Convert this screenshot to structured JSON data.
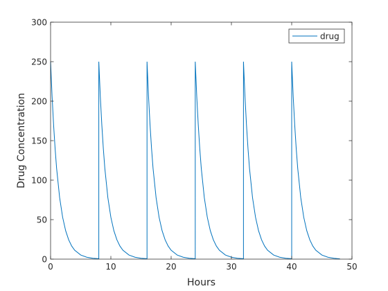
{
  "chart_data": {
    "type": "line",
    "title": "",
    "xlabel": "Hours",
    "ylabel": "Drug Concentration",
    "xlim": [
      0,
      50
    ],
    "ylim": [
      0,
      300
    ],
    "xticks": [
      0,
      10,
      20,
      30,
      40,
      50
    ],
    "yticks": [
      0,
      50,
      100,
      150,
      200,
      250,
      300
    ],
    "grid": false,
    "legend_position": "top-right",
    "series": [
      {
        "name": "drug",
        "color": "#0072bd",
        "dose_times": [
          0,
          8,
          16,
          24,
          32,
          40
        ],
        "x": [
          0,
          0.25,
          0.5,
          0.75,
          1,
          1.5,
          2,
          2.5,
          3,
          3.5,
          4,
          5,
          6,
          7,
          8,
          8,
          8.25,
          8.5,
          8.75,
          9,
          9.5,
          10,
          10.5,
          11,
          11.5,
          12,
          13,
          14,
          15,
          16,
          16,
          16.25,
          16.5,
          16.75,
          17,
          17.5,
          18,
          18.5,
          19,
          19.5,
          20,
          21,
          22,
          23,
          24,
          24,
          24.25,
          24.5,
          24.75,
          25,
          25.5,
          26,
          26.5,
          27,
          27.5,
          28,
          29,
          30,
          31,
          32,
          32,
          32.25,
          32.5,
          32.75,
          33,
          33.5,
          34,
          34.5,
          35,
          35.5,
          36,
          37,
          38,
          39,
          40,
          40,
          40.25,
          40.5,
          40.75,
          41,
          41.5,
          42,
          42.5,
          43,
          43.5,
          44,
          45,
          46,
          47,
          48
        ],
        "y": [
          250,
          206,
          170,
          140,
          115,
          78,
          53,
          36,
          24.5,
          16.6,
          11.3,
          5.2,
          2.4,
          1.1,
          0.5,
          250,
          206,
          170,
          140,
          115,
          78,
          53,
          36,
          24.5,
          16.6,
          11.3,
          5.2,
          2.4,
          1.1,
          0.5,
          250,
          206,
          170,
          140,
          115,
          78,
          53,
          36,
          24.5,
          16.6,
          11.3,
          5.2,
          2.4,
          1.1,
          0.5,
          250,
          206,
          170,
          140,
          115,
          78,
          53,
          36,
          24.5,
          16.6,
          11.3,
          5.2,
          2.4,
          1.1,
          0.5,
          250,
          206,
          170,
          140,
          115,
          78,
          53,
          36,
          24.5,
          16.6,
          11.3,
          5.2,
          2.4,
          1.1,
          0.5,
          250,
          206,
          170,
          140,
          115,
          78,
          53,
          36,
          24.5,
          16.6,
          11.3,
          5.2,
          2.4,
          1.1,
          0.3
        ]
      }
    ]
  }
}
